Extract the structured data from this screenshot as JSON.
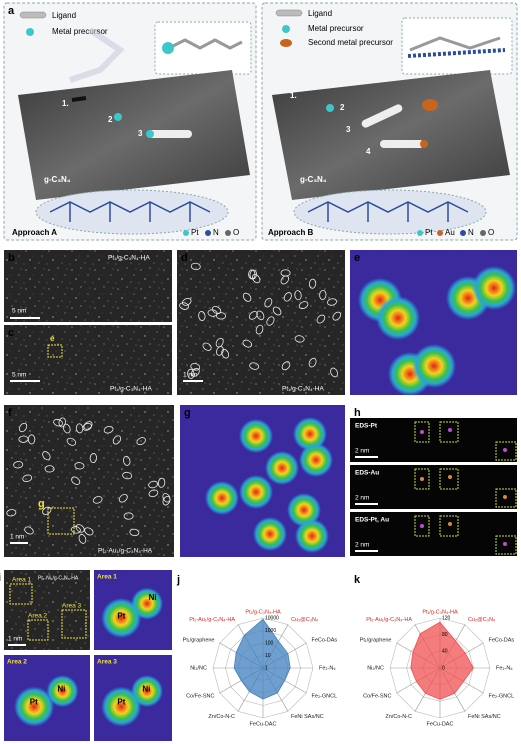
{
  "panel_a": {
    "label": "a",
    "approach_a": {
      "ligand": "Ligand",
      "metal": "Metal precursor",
      "steps": [
        "1.",
        "2",
        "3"
      ],
      "support": "g-C₃N₄",
      "title": "Approach A",
      "atoms": [
        "Pt",
        "N",
        "O"
      ]
    },
    "approach_b": {
      "ligand": "Ligand",
      "metal": "Metal precursor",
      "second": "Second metal precursor",
      "steps": [
        "1.",
        "2",
        "3",
        "4"
      ],
      "support": "g-C₃N₄",
      "title": "Approach B",
      "atoms": [
        "Pt",
        "Au",
        "N",
        "O"
      ]
    }
  },
  "panel_b": {
    "label": "b",
    "sample": "Pt₁/g-C₃N₄-HA",
    "scale": "5 nm"
  },
  "panel_c": {
    "label": "c",
    "marker": "e",
    "scale": "5 nm",
    "sample": "Pt₁/g-C₃N₄-HA"
  },
  "panel_d": {
    "label": "d",
    "scale": "1 nm",
    "sample": "Pt₁/g-C₃N₄-HA"
  },
  "panel_e": {
    "label": "e"
  },
  "panel_f": {
    "label": "f",
    "marker": "g",
    "scale": "1 nm",
    "sample": "Pt₁-Au₁/g-C₃N₄-HA"
  },
  "panel_g": {
    "label": "g"
  },
  "panel_h": {
    "label": "h",
    "maps": [
      {
        "title": "EDS-Pt",
        "scale": "2 nm"
      },
      {
        "title": "EDS-Au",
        "scale": "2 nm"
      },
      {
        "title": "EDS-Pt, Au",
        "scale": "2 nm"
      }
    ]
  },
  "panel_i": {
    "label": "i",
    "sample": "Pt₁-Ni₁/g-C₃N₄-HA",
    "areas": [
      "Area 1",
      "Area 2",
      "Area 3"
    ],
    "scale": "1 nm",
    "maps": [
      {
        "area": "Area 1",
        "atoms": [
          "Ni",
          "Pt"
        ]
      },
      {
        "area": "Area 2",
        "atoms": [
          "Pt",
          "Ni"
        ]
      },
      {
        "area": "Area 3",
        "atoms": [
          "Pt",
          "Ni"
        ]
      }
    ]
  },
  "chart_data": [
    {
      "type": "radar",
      "panel_label": "j",
      "categories": [
        "Pt₁/g-C₃N₄-HA",
        "Cu₂@C₃N₄",
        "FeCo-DAs",
        "Fe₂-N₆",
        "Fe₂-GNCL",
        "FeNi SAs/NC",
        "FeCu-DAC",
        "Zn/Co-N-C",
        "Co/Fe-SNC",
        "Ni₂/NC",
        "Pt₁/graphene",
        "Pt₁-Au₁/g-C₃N₄-HA"
      ],
      "values": [
        8000,
        300,
        200,
        150,
        100,
        200,
        300,
        150,
        100,
        200,
        300,
        1000
      ],
      "color": "#3f7fbf",
      "log_scale": true,
      "rlim": [
        1,
        10000
      ],
      "rticks": [
        1,
        10,
        100,
        1000,
        10000
      ]
    },
    {
      "type": "radar",
      "panel_label": "k",
      "categories": [
        "Pt₁/g-C₃N₄-HA",
        "Cu₂@C₃N₄",
        "FeCo-DAs",
        "Fe₂-N₆",
        "Fe₂-GNCL",
        "FeNi SAs/NC",
        "FeCu-DAC",
        "Zn/Co-N-C",
        "Co/Fe-SNC",
        "Ni₂/NC",
        "Pt₁/graphene",
        "Pt₁-Au₁/g-C₃N₄-HA"
      ],
      "values": [
        110,
        75,
        70,
        80,
        65,
        70,
        75,
        70,
        65,
        70,
        75,
        95
      ],
      "color": "#f05050",
      "log_scale": false,
      "rlim": [
        0,
        120
      ],
      "rticks": [
        0,
        40,
        80,
        120
      ]
    }
  ]
}
